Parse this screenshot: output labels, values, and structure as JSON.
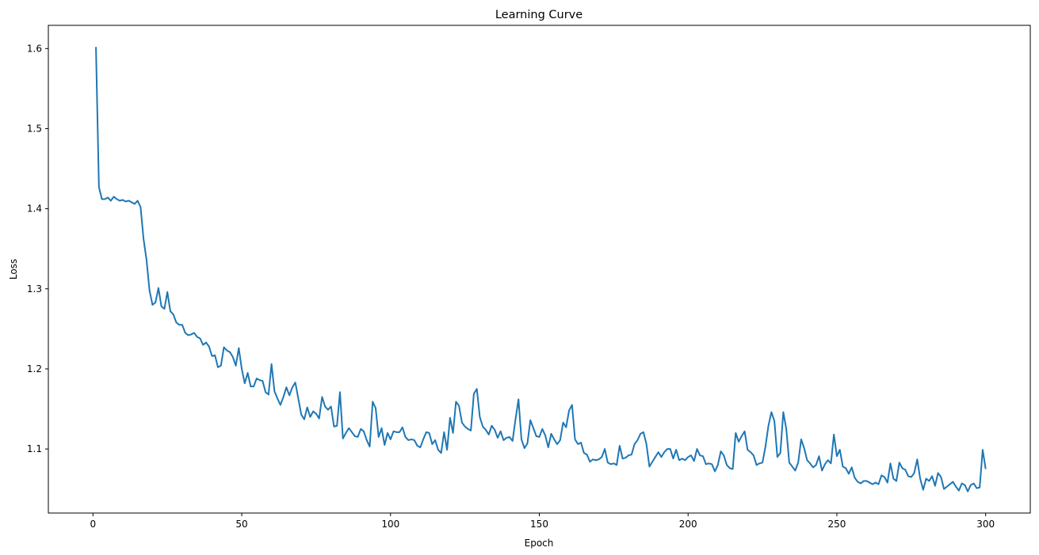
{
  "chart_data": {
    "type": "line",
    "title": "Learning Curve",
    "xlabel": "Epoch",
    "ylabel": "Loss",
    "xlim": [
      -15,
      315
    ],
    "ylim": [
      1.02,
      1.629
    ],
    "x_ticks": [
      0,
      50,
      100,
      150,
      200,
      250,
      300
    ],
    "y_ticks": [
      1.1,
      1.2,
      1.3,
      1.4,
      1.5,
      1.6
    ],
    "grid": false,
    "line_color": "#1f77b4",
    "series": [
      {
        "x_start": 1,
        "x_step": 1,
        "values": [
          1.602,
          1.427,
          1.412,
          1.412,
          1.414,
          1.41,
          1.415,
          1.412,
          1.41,
          1.411,
          1.409,
          1.41,
          1.408,
          1.406,
          1.41,
          1.402,
          1.362,
          1.336,
          1.298,
          1.28,
          1.283,
          1.301,
          1.278,
          1.275,
          1.296,
          1.272,
          1.268,
          1.258,
          1.255,
          1.255,
          1.245,
          1.242,
          1.243,
          1.245,
          1.24,
          1.238,
          1.23,
          1.233,
          1.228,
          1.216,
          1.217,
          1.202,
          1.204,
          1.227,
          1.223,
          1.221,
          1.215,
          1.204,
          1.226,
          1.2,
          1.182,
          1.195,
          1.178,
          1.178,
          1.188,
          1.186,
          1.185,
          1.171,
          1.168,
          1.206,
          1.172,
          1.163,
          1.155,
          1.165,
          1.177,
          1.167,
          1.177,
          1.183,
          1.163,
          1.143,
          1.137,
          1.152,
          1.14,
          1.147,
          1.144,
          1.138,
          1.165,
          1.153,
          1.149,
          1.153,
          1.128,
          1.129,
          1.171,
          1.113,
          1.12,
          1.126,
          1.121,
          1.116,
          1.115,
          1.125,
          1.122,
          1.111,
          1.103,
          1.159,
          1.151,
          1.115,
          1.126,
          1.105,
          1.12,
          1.112,
          1.122,
          1.121,
          1.121,
          1.127,
          1.115,
          1.111,
          1.112,
          1.111,
          1.104,
          1.102,
          1.112,
          1.121,
          1.12,
          1.106,
          1.111,
          1.099,
          1.095,
          1.121,
          1.099,
          1.139,
          1.12,
          1.159,
          1.154,
          1.133,
          1.128,
          1.125,
          1.123,
          1.169,
          1.175,
          1.14,
          1.128,
          1.124,
          1.118,
          1.129,
          1.124,
          1.114,
          1.122,
          1.111,
          1.114,
          1.115,
          1.11,
          1.137,
          1.162,
          1.112,
          1.101,
          1.107,
          1.136,
          1.126,
          1.116,
          1.115,
          1.125,
          1.117,
          1.102,
          1.119,
          1.112,
          1.106,
          1.111,
          1.133,
          1.127,
          1.148,
          1.155,
          1.112,
          1.106,
          1.108,
          1.095,
          1.093,
          1.084,
          1.087,
          1.086,
          1.087,
          1.09,
          1.1,
          1.083,
          1.081,
          1.082,
          1.08,
          1.104,
          1.088,
          1.089,
          1.092,
          1.093,
          1.106,
          1.111,
          1.119,
          1.121,
          1.106,
          1.078,
          1.084,
          1.09,
          1.096,
          1.09,
          1.096,
          1.1,
          1.1,
          1.088,
          1.099,
          1.086,
          1.088,
          1.086,
          1.09,
          1.092,
          1.085,
          1.1,
          1.092,
          1.091,
          1.081,
          1.082,
          1.081,
          1.072,
          1.08,
          1.097,
          1.092,
          1.08,
          1.076,
          1.075,
          1.12,
          1.109,
          1.116,
          1.122,
          1.099,
          1.096,
          1.092,
          1.08,
          1.082,
          1.083,
          1.103,
          1.129,
          1.146,
          1.135,
          1.09,
          1.095,
          1.146,
          1.125,
          1.083,
          1.078,
          1.073,
          1.083,
          1.112,
          1.101,
          1.086,
          1.082,
          1.077,
          1.08,
          1.091,
          1.073,
          1.081,
          1.086,
          1.082,
          1.118,
          1.091,
          1.099,
          1.078,
          1.076,
          1.069,
          1.077,
          1.064,
          1.059,
          1.057,
          1.06,
          1.06,
          1.058,
          1.056,
          1.058,
          1.056,
          1.067,
          1.065,
          1.058,
          1.082,
          1.063,
          1.06,
          1.083,
          1.076,
          1.074,
          1.066,
          1.065,
          1.07,
          1.087,
          1.063,
          1.049,
          1.063,
          1.06,
          1.066,
          1.054,
          1.07,
          1.065,
          1.05,
          1.053,
          1.056,
          1.059,
          1.053,
          1.048,
          1.057,
          1.055,
          1.047,
          1.055,
          1.057,
          1.051,
          1.052,
          1.099,
          1.075
        ]
      }
    ]
  }
}
